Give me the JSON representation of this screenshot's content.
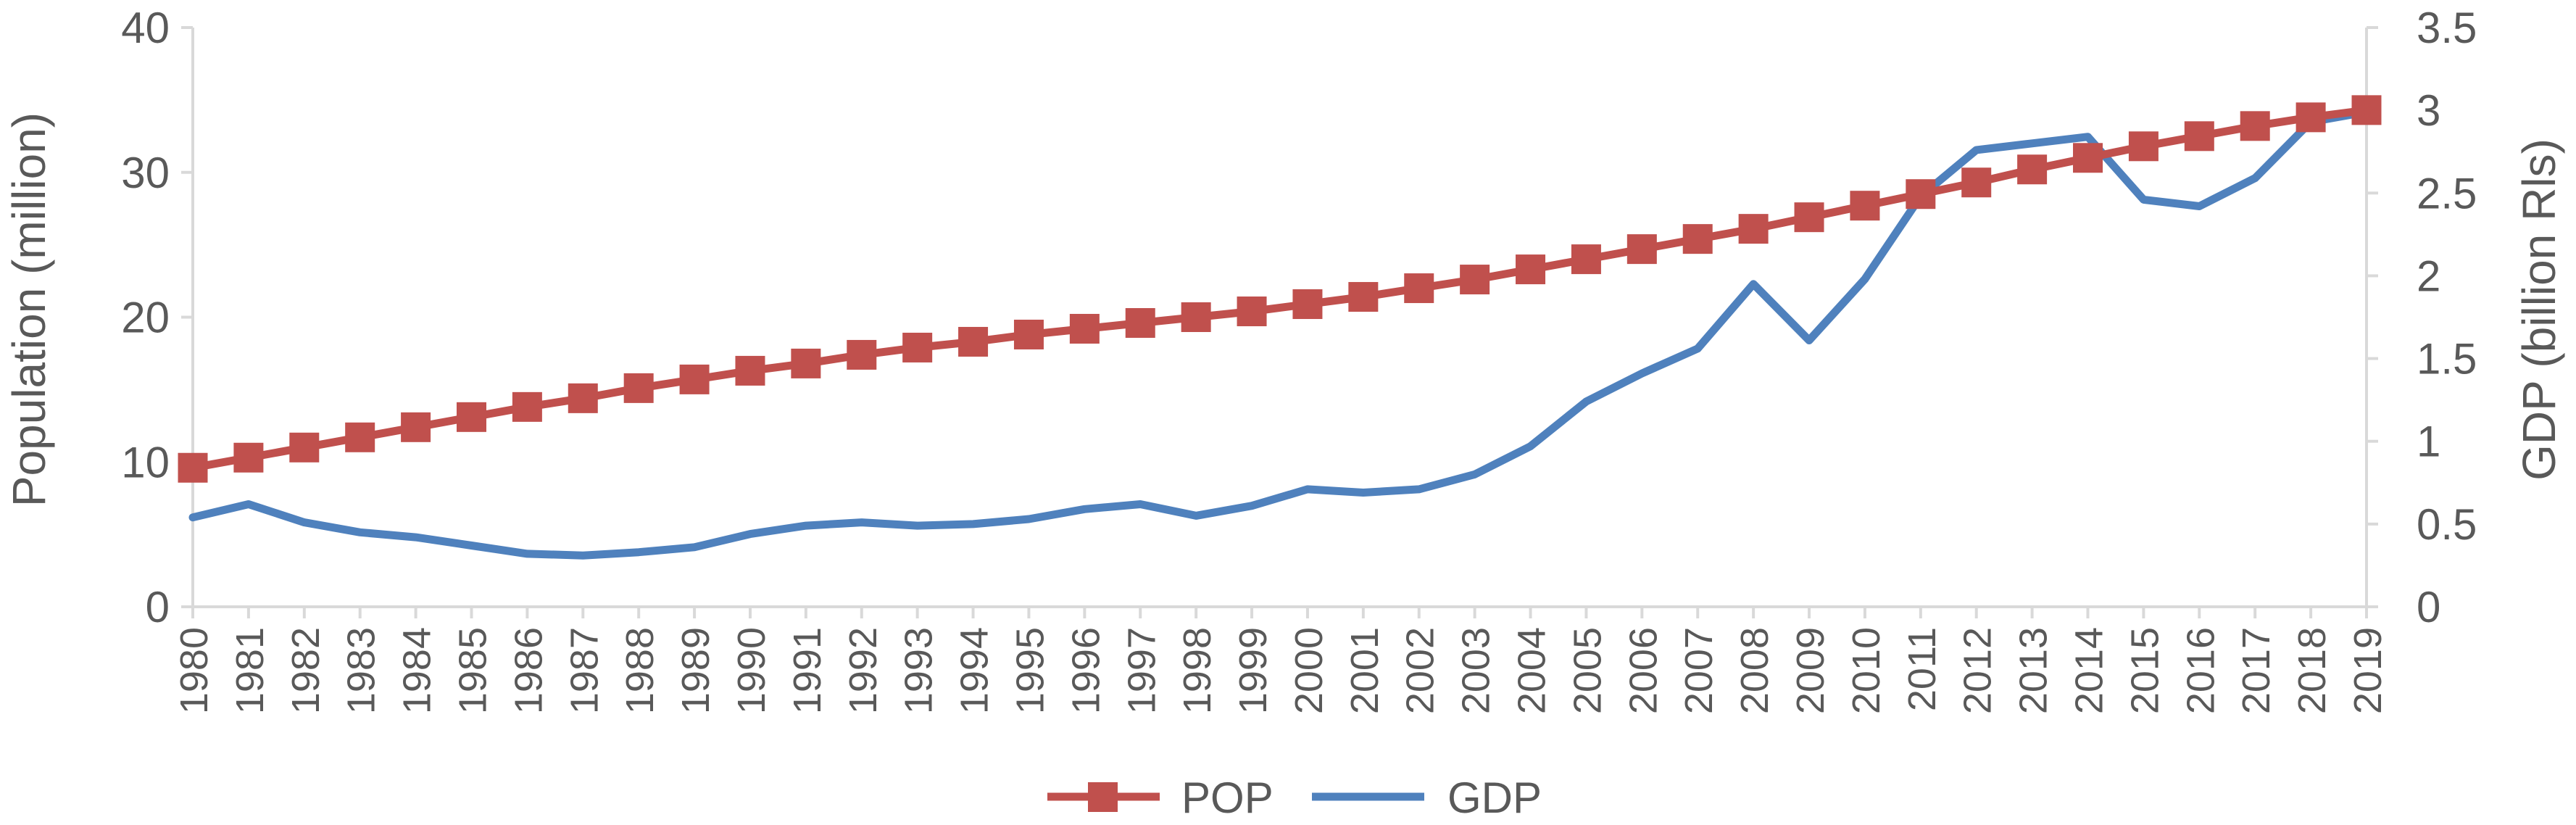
{
  "chart_data": {
    "type": "line",
    "title": "",
    "categories": [
      "1980",
      "1981",
      "1982",
      "1983",
      "1984",
      "1985",
      "1986",
      "1987",
      "1988",
      "1989",
      "1990",
      "1991",
      "1992",
      "1993",
      "1994",
      "1995",
      "1996",
      "1997",
      "1998",
      "1999",
      "2000",
      "2001",
      "2002",
      "2003",
      "2004",
      "2005",
      "2006",
      "2007",
      "2008",
      "2009",
      "2010",
      "2011",
      "2012",
      "2013",
      "2014",
      "2015",
      "2016",
      "2017",
      "2018",
      "2019"
    ],
    "y_left": {
      "label": "Population (million)",
      "lim": [
        0,
        40
      ],
      "ticks": [
        "0",
        "10",
        "20",
        "30",
        "40"
      ],
      "tick_values": [
        0,
        10,
        20,
        30,
        40
      ]
    },
    "y_right": {
      "label": "GDP (billion Rls)",
      "lim": [
        0,
        3.5
      ],
      "ticks": [
        "0",
        "0.5",
        "1",
        "1.5",
        "2",
        "2.5",
        "3",
        "3.5"
      ],
      "tick_values": [
        0,
        0.5,
        1,
        1.5,
        2,
        2.5,
        3,
        3.5
      ]
    },
    "series": [
      {
        "name": "POP",
        "axis": "left",
        "color": "#c0504d",
        "marker": "square",
        "values": [
          9.6,
          10.3,
          11.0,
          11.7,
          12.4,
          13.1,
          13.8,
          14.4,
          15.1,
          15.7,
          16.3,
          16.8,
          17.4,
          17.9,
          18.3,
          18.8,
          19.2,
          19.6,
          20.0,
          20.4,
          20.9,
          21.4,
          22.0,
          22.6,
          23.3,
          24.0,
          24.7,
          25.4,
          26.1,
          26.9,
          27.7,
          28.5,
          29.3,
          30.2,
          31.0,
          31.8,
          32.5,
          33.2,
          33.8,
          34.3
        ]
      },
      {
        "name": "GDP",
        "axis": "right",
        "color": "#4f81bd",
        "marker": "none",
        "values": [
          0.54,
          0.62,
          0.51,
          0.45,
          0.42,
          0.37,
          0.32,
          0.31,
          0.33,
          0.36,
          0.44,
          0.49,
          0.51,
          0.49,
          0.5,
          0.53,
          0.59,
          0.62,
          0.55,
          0.61,
          0.71,
          0.69,
          0.71,
          0.8,
          0.97,
          1.24,
          1.41,
          1.56,
          1.95,
          1.61,
          1.98,
          2.48,
          2.76,
          2.8,
          2.84,
          2.46,
          2.42,
          2.59,
          2.93,
          2.99
        ]
      }
    ],
    "legend": {
      "position": "bottom-center",
      "entries": [
        "POP",
        "GDP"
      ]
    },
    "grid": false
  }
}
